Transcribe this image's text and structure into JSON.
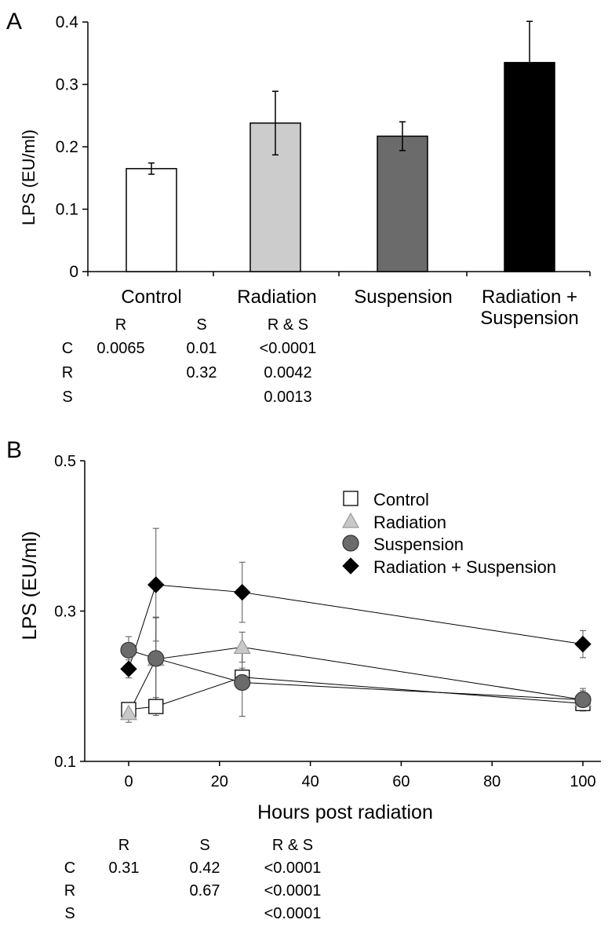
{
  "chart_data": [
    {
      "panel": "A",
      "type": "bar",
      "title": "",
      "xlabel": "",
      "ylabel": "LPS (EU/ml)",
      "ylim": [
        0,
        0.4
      ],
      "yticks": [
        "0",
        "0.1",
        "0.2",
        "0.3",
        "0.4"
      ],
      "categories": [
        "Control",
        "Radiation",
        "Suspension",
        "Radiation + Suspension"
      ],
      "category_label_lines": [
        [
          "Control"
        ],
        [
          "Radiation"
        ],
        [
          "Suspension"
        ],
        [
          "Radiation +",
          "Suspension"
        ]
      ],
      "values": [
        0.165,
        0.238,
        0.217,
        0.335
      ],
      "errors": [
        0.009,
        0.051,
        0.023,
        0.066
      ],
      "colors": [
        "#ffffff",
        "#cccccc",
        "#6b6b6b",
        "#000000"
      ]
    },
    {
      "panel": "B",
      "type": "line",
      "title": "",
      "xlabel": "Hours post radiation",
      "ylabel": "LPS (EU/ml)",
      "xlim": [
        -10,
        104
      ],
      "ylim": [
        0.1,
        0.5
      ],
      "xticks": [
        "0",
        "20",
        "40",
        "60",
        "80",
        "100"
      ],
      "yticks": [
        "0.1",
        "0.3",
        "0.5"
      ],
      "legend_position": "top-right",
      "series": [
        {
          "name": "Control",
          "marker": "square",
          "fill": "#ffffff",
          "x": [
            0,
            6,
            25,
            100
          ],
          "values": [
            0.169,
            0.173,
            0.212,
            0.177
          ],
          "errors": [
            0.005,
            0.012,
            0.012,
            0.005
          ]
        },
        {
          "name": "Radiation",
          "marker": "triangle",
          "fill": "#c8c8c8",
          "x": [
            0,
            6,
            25,
            100
          ],
          "values": [
            0.164,
            0.236,
            0.252,
            0.182
          ],
          "errors": [
            0.012,
            0.055,
            0.02,
            0.012
          ]
        },
        {
          "name": "Suspension",
          "marker": "circle",
          "fill": "#6b6b6b",
          "x": [
            0,
            6,
            25,
            100
          ],
          "values": [
            0.248,
            0.237,
            0.205,
            0.182
          ],
          "errors": [
            0.018,
            0.055,
            0.045,
            0.015
          ]
        },
        {
          "name": "Radiation + Suspension",
          "marker": "diamond",
          "fill": "#000000",
          "x": [
            0,
            6,
            25,
            100
          ],
          "values": [
            0.223,
            0.335,
            0.325,
            0.256
          ],
          "errors": [
            0.012,
            0.075,
            0.04,
            0.018
          ]
        }
      ]
    }
  ],
  "panels": {
    "a": {
      "label": "A",
      "pvalue_table": {
        "columns": [
          "R",
          "S",
          "R & S"
        ],
        "rows": [
          {
            "label": "C",
            "cells": [
              "0.0065",
              "0.01",
              "<0.0001"
            ]
          },
          {
            "label": "R",
            "cells": [
              "",
              "0.32",
              "0.0042"
            ]
          },
          {
            "label": "S",
            "cells": [
              "",
              "",
              "0.0013"
            ]
          }
        ]
      }
    },
    "b": {
      "label": "B",
      "pvalue_table": {
        "columns": [
          "R",
          "S",
          "R & S"
        ],
        "rows": [
          {
            "label": "C",
            "cells": [
              "0.31",
              "0.42",
              "<0.0001"
            ]
          },
          {
            "label": "R",
            "cells": [
              "",
              "0.67",
              "<0.0001"
            ]
          },
          {
            "label": "S",
            "cells": [
              "",
              "",
              "<0.0001"
            ]
          }
        ]
      }
    }
  }
}
